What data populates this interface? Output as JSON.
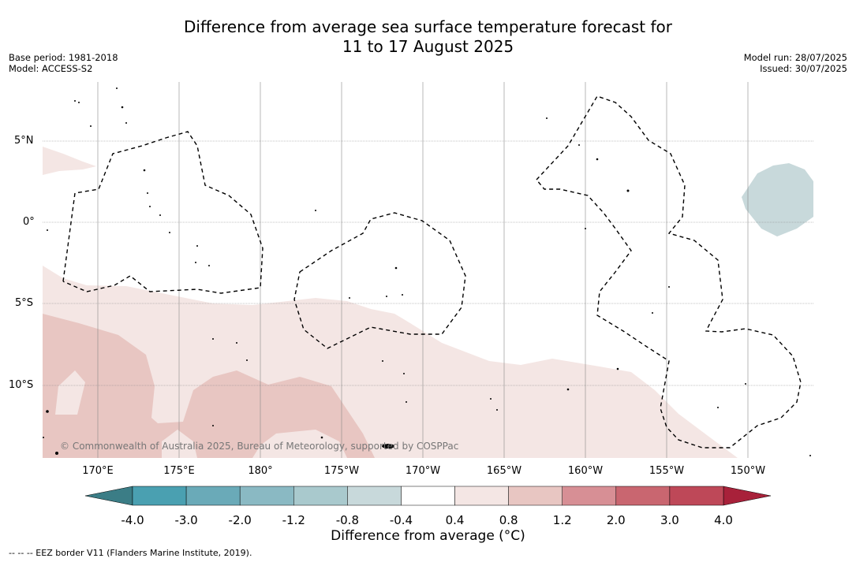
{
  "title_line1": "Difference from average sea surface temperature forecast for",
  "title_line2": "11 to 17 August 2025",
  "base_period": "Base period: 1981-2018",
  "model": "Model: ACCESS-S2",
  "model_run": "Model run: 28/07/2025",
  "issued": "Issued: 30/07/2025",
  "lat_labels": [
    "5°N",
    "0°",
    "5°S",
    "10°S"
  ],
  "lon_labels": [
    "170°E",
    "175°E",
    "180°",
    "175°W",
    "170°W",
    "165°W",
    "160°W",
    "155°W",
    "150°W"
  ],
  "copyright": "© Commonwealth of Australia 2025, Bureau of Meteorology, supported by COSPPac",
  "colorbar": {
    "ticks": [
      "-4.0",
      "-3.0",
      "-2.0",
      "-1.2",
      "-0.8",
      "-0.4",
      "0.4",
      "0.8",
      "1.2",
      "2.0",
      "3.0",
      "4.0"
    ],
    "colors": [
      "#4aa0b1",
      "#6aaab8",
      "#8ab9c3",
      "#a9c9cd",
      "#c8d9db",
      "#ffffff",
      "#f4e6e4",
      "#e8c6c2",
      "#d78f95",
      "#c96670",
      "#be4858"
    ],
    "low_end_color": "#3b7d86",
    "high_end_color": "#a8213a",
    "title": "Difference from average (°C)"
  },
  "footnote": "-- -- -- EEZ border V11 (Flanders Marine Institute, 2019)."
}
